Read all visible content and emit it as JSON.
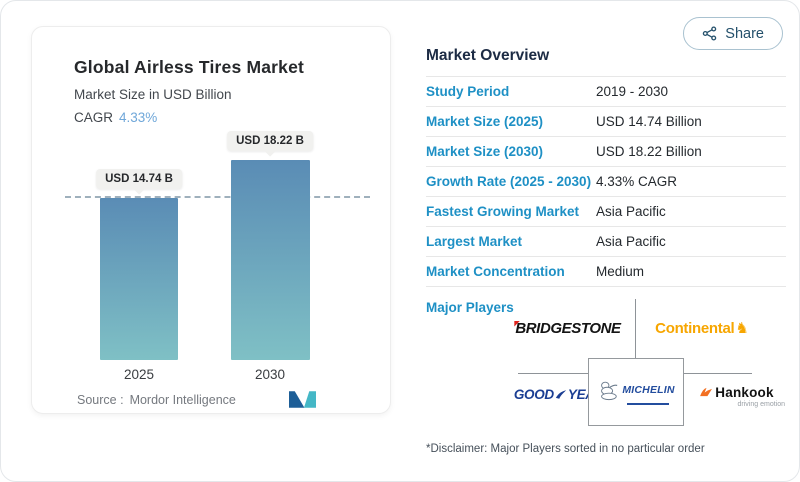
{
  "share": {
    "label": "Share"
  },
  "chart_panel": {
    "title": "Global Airless Tires Market",
    "subtitle": "Market Size in USD Billion",
    "cagr_label": "CAGR",
    "cagr_value": "4.33%",
    "source_label": "Source :",
    "source_name": "Mordor Intelligence"
  },
  "chart_data": {
    "type": "bar",
    "title": "Global Airless Tires Market",
    "ylabel": "Market Size in USD Billion",
    "categories": [
      "2025",
      "2030"
    ],
    "values": [
      14.74,
      18.22
    ],
    "value_labels": [
      "USD 14.74 B",
      "USD 18.22 B"
    ],
    "unit": "USD Billion",
    "ylim": [
      0,
      20
    ],
    "reference_line": 14.74,
    "grid": false,
    "bar_color_top": "#5a8cb5",
    "bar_color_bottom": "#7fc0c5"
  },
  "overview": {
    "heading": "Market Overview",
    "rows": [
      {
        "label": "Study Period",
        "value": "2019 - 2030"
      },
      {
        "label": "Market Size (2025)",
        "value": "USD 14.74 Billion"
      },
      {
        "label": "Market Size (2030)",
        "value": "USD 18.22 Billion"
      },
      {
        "label": "Growth Rate (2025 - 2030)",
        "value": "4.33% CAGR"
      },
      {
        "label": "Fastest Growing Market",
        "value": "Asia Pacific"
      },
      {
        "label": "Largest Market",
        "value": "Asia Pacific"
      },
      {
        "label": "Market Concentration",
        "value": "Medium"
      }
    ],
    "major_players_label": "Major Players",
    "players": {
      "bridgestone": {
        "first": "B",
        "rest": "RIDGESTONE"
      },
      "continental": {
        "name": "Continental"
      },
      "goodyear": {
        "left": "GOOD",
        "right": "YEAR"
      },
      "michelin": {
        "name": "MICHELIN"
      },
      "hankook": {
        "name": "Hankook",
        "tagline": "driving emotion"
      }
    },
    "disclaimer": "*Disclaimer: Major Players sorted in no particular order"
  },
  "colors": {
    "accent_blue": "#1e90c5",
    "heading_navy": "#1c2b44",
    "cagr_blue": "#6fa7d9",
    "dashed_line": "#8096a6"
  }
}
